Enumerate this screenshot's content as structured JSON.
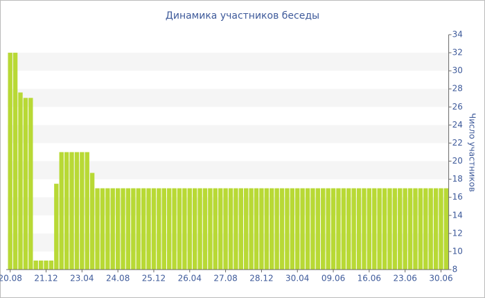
{
  "chart_data": {
    "type": "bar",
    "title": "Динамика участников беседы",
    "y_label": "Число участников",
    "categories": [
      "20.08",
      null,
      null,
      null,
      null,
      null,
      null,
      "21.12",
      null,
      null,
      null,
      null,
      null,
      null,
      "23.04",
      null,
      null,
      null,
      null,
      null,
      null,
      "24.08",
      null,
      null,
      null,
      null,
      null,
      null,
      "25.12",
      null,
      null,
      null,
      null,
      null,
      null,
      "26.04",
      null,
      null,
      null,
      null,
      null,
      null,
      "27.08",
      null,
      null,
      null,
      null,
      null,
      null,
      "28.12",
      null,
      null,
      null,
      null,
      null,
      null,
      "30.04",
      null,
      null,
      null,
      null,
      null,
      null,
      "09.06",
      null,
      null,
      null,
      null,
      null,
      null,
      "16.06",
      null,
      null,
      null,
      null,
      null,
      null,
      "23.06",
      null,
      null,
      null,
      null,
      null,
      null,
      "30.06",
      null
    ],
    "values": [
      32,
      32,
      27.6,
      27,
      27,
      9,
      9,
      9,
      9,
      17.5,
      21,
      21,
      21,
      21,
      21,
      21,
      18.7,
      17,
      17,
      17,
      17,
      17,
      17,
      17,
      17,
      17,
      17,
      17,
      17,
      17,
      17,
      17,
      17,
      17,
      17,
      17,
      17,
      17,
      17,
      17,
      17,
      17,
      17,
      17,
      17,
      17,
      17,
      17,
      17,
      17,
      17,
      17,
      17,
      17,
      17,
      17,
      17,
      17,
      17,
      17,
      17,
      17,
      17,
      17,
      17,
      17,
      17,
      17,
      17,
      17,
      17,
      17,
      17,
      17,
      17,
      17,
      17,
      17,
      17,
      17,
      17,
      17,
      17,
      17,
      17,
      17
    ],
    "color": "#b8d935",
    "ylim": [
      8,
      34
    ],
    "yticks": [
      8,
      10,
      12,
      14,
      16,
      18,
      20,
      22,
      24,
      26,
      28,
      30,
      32,
      34
    ],
    "grid": true
  }
}
